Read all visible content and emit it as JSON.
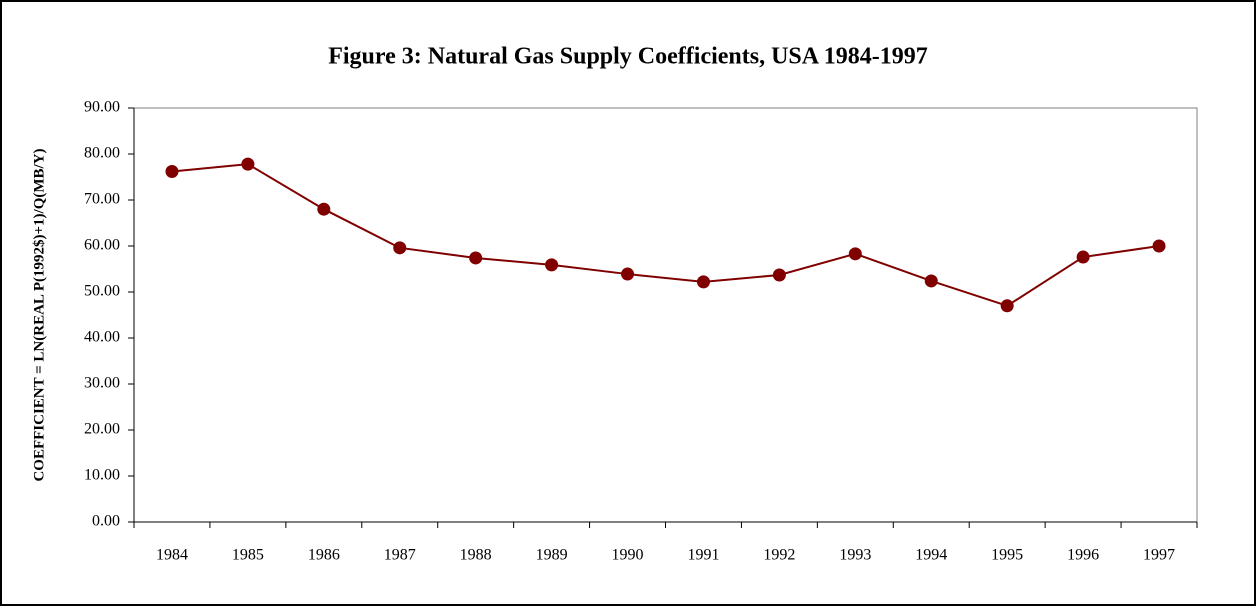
{
  "chart_data": {
    "type": "line",
    "title": "Figure 3: Natural Gas Supply Coefficients, USA 1984-1997",
    "y_label": "COEFFICIENT = LN(REAL P(1992$)+1)/Q(MB/Y)",
    "categories": [
      "1984",
      "1985",
      "1986",
      "1987",
      "1988",
      "1989",
      "1990",
      "1991",
      "1992",
      "1993",
      "1994",
      "1995",
      "1996",
      "1997"
    ],
    "series": [
      {
        "color": "#800000",
        "values": [
          76.2,
          77.8,
          68.0,
          59.6,
          57.4,
          55.9,
          53.9,
          52.2,
          53.7,
          58.3,
          52.4,
          47.0,
          57.6,
          60.0
        ]
      }
    ],
    "ylim": [
      0,
      90
    ],
    "yticks": [
      {
        "value": 0,
        "label": "0.00"
      },
      {
        "value": 10,
        "label": "10.00"
      },
      {
        "value": 20,
        "label": "20.00"
      },
      {
        "value": 30,
        "label": "30.00"
      },
      {
        "value": 40,
        "label": "40.00"
      },
      {
        "value": 50,
        "label": "50.00"
      },
      {
        "value": 60,
        "label": "60.00"
      },
      {
        "value": 70,
        "label": "70.00"
      },
      {
        "value": 80,
        "label": "80.00"
      },
      {
        "value": 90,
        "label": "90.00"
      }
    ],
    "grid": false
  }
}
